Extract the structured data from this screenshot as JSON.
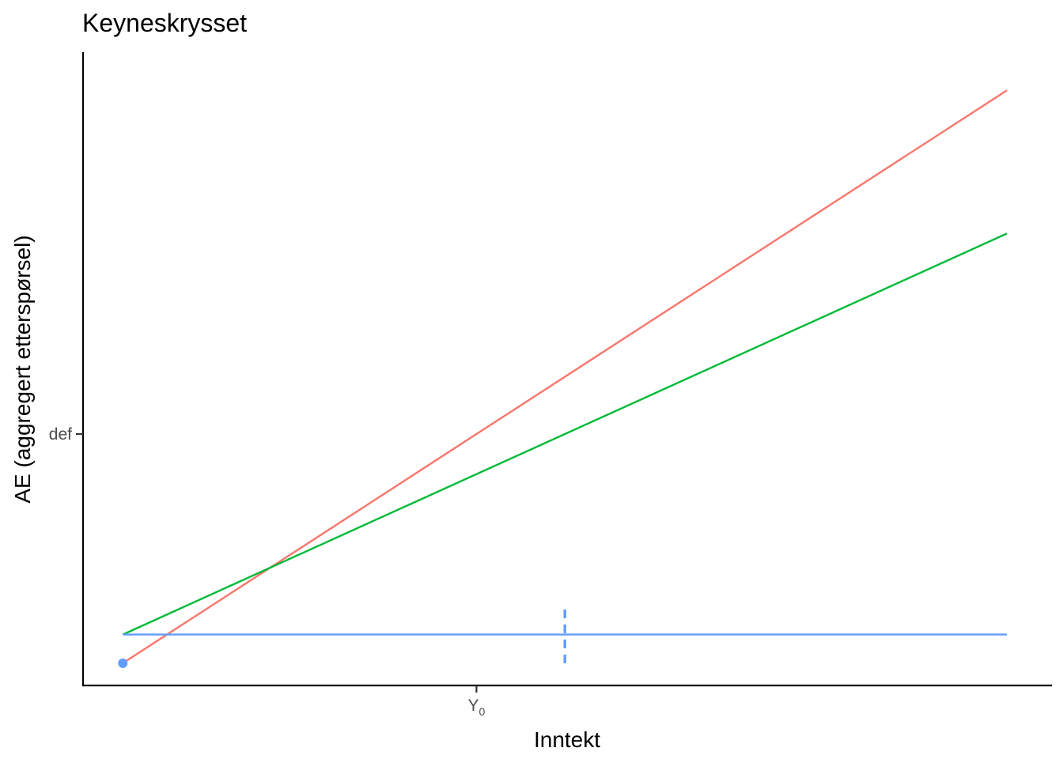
{
  "chart_data": {
    "type": "line",
    "title": "Keyneskrysset",
    "xlabel": "Inntekt",
    "ylabel": "AE (aggregert etterspørsel)",
    "xlim": [
      -0.45,
      10.5
    ],
    "ylim": [
      -0.35,
      9.6
    ],
    "x_ticks": [
      {
        "value": 4,
        "label": "Y",
        "subscript": "0"
      }
    ],
    "y_ticks": [
      {
        "value": 3.6,
        "label": "def"
      }
    ],
    "grid": false,
    "legend": "none",
    "series": [
      {
        "color": "#F8766D",
        "x": [
          0,
          10
        ],
        "y": [
          0,
          9
        ]
      },
      {
        "color": "#00BA38",
        "x": [
          0,
          10
        ],
        "y": [
          0.45,
          6.75
        ]
      },
      {
        "color": "#619CFF",
        "x": [
          0,
          10
        ],
        "y": [
          0.45,
          0.45
        ]
      }
    ],
    "dashed_segment": {
      "color": "#619CFF",
      "x": 5,
      "y": [
        0,
        0.9
      ]
    },
    "points": [
      {
        "color": "#619CFF",
        "x": 0,
        "y": 0
      }
    ]
  }
}
